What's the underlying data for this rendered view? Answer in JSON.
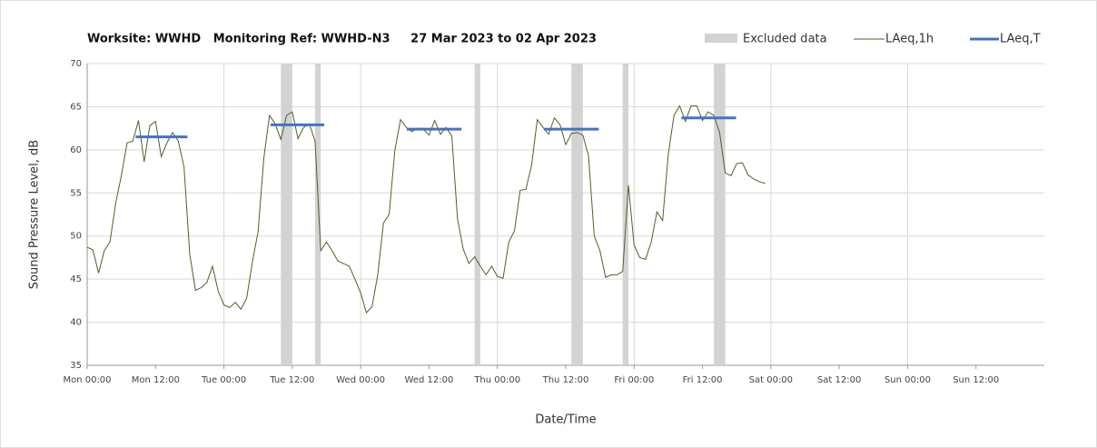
{
  "chart_data": {
    "type": "line",
    "title": "Worksite: WWHD   Monitoring Ref: WWHD-N3     27 Mar 2023 to 02 Apr 2023",
    "xlabel": "Date/Time",
    "ylabel": "Sound Pressure Level, dB",
    "xlim": [
      0,
      168
    ],
    "ylim": [
      35,
      70
    ],
    "yticks": [
      35,
      40,
      45,
      50,
      55,
      60,
      65,
      70
    ],
    "xticks": [
      {
        "value": 0,
        "label": "Mon 00:00"
      },
      {
        "value": 12,
        "label": "Mon 12:00"
      },
      {
        "value": 24,
        "label": "Tue 00:00"
      },
      {
        "value": 36,
        "label": "Tue 12:00"
      },
      {
        "value": 48,
        "label": "Wed 00:00"
      },
      {
        "value": 60,
        "label": "Wed 12:00"
      },
      {
        "value": 72,
        "label": "Thu 00:00"
      },
      {
        "value": 84,
        "label": "Thu 12:00"
      },
      {
        "value": 96,
        "label": "Fri 00:00"
      },
      {
        "value": 108,
        "label": "Fri 12:00"
      },
      {
        "value": 120,
        "label": "Sat 00:00"
      },
      {
        "value": 132,
        "label": "Sat 12:00"
      },
      {
        "value": 144,
        "label": "Sun 00:00"
      },
      {
        "value": 156,
        "label": "Sun 12:00"
      }
    ],
    "grid": true,
    "excluded": {
      "name": "Excluded data",
      "color": "#d3d3d3",
      "ranges": [
        [
          34,
          36
        ],
        [
          40,
          41
        ],
        [
          68,
          69
        ],
        [
          85,
          87
        ],
        [
          94,
          95
        ],
        [
          110,
          112
        ]
      ]
    },
    "series": [
      {
        "name": "LAeq,1h",
        "color": "#4f6228",
        "x": [
          0,
          1,
          2,
          3,
          4,
          5,
          6,
          7,
          8,
          9,
          10,
          11,
          12,
          13,
          14,
          15,
          16,
          17,
          18,
          19,
          20,
          21,
          22,
          23,
          24,
          25,
          26,
          27,
          28,
          29,
          30,
          31,
          32,
          33,
          34,
          35,
          36,
          37,
          38,
          39,
          40,
          41,
          42,
          43,
          44,
          45,
          46,
          47,
          48,
          49,
          50,
          51,
          52,
          53,
          54,
          55,
          56,
          57,
          58,
          59,
          60,
          61,
          62,
          63,
          64,
          65,
          66,
          67,
          68,
          69,
          70,
          71,
          72,
          73,
          74,
          75,
          76,
          77,
          78,
          79,
          80,
          81,
          82,
          83,
          84,
          85,
          86,
          87,
          88,
          89,
          90,
          91,
          92,
          93,
          94,
          95,
          96,
          97,
          98,
          99,
          100,
          101,
          102,
          103,
          104,
          105,
          106,
          107,
          108,
          109,
          110,
          111,
          112,
          113,
          114,
          115,
          116,
          117,
          118,
          119
        ],
        "values": [
          48.7,
          48.4,
          45.7,
          48.3,
          49.3,
          53.8,
          57,
          60.8,
          61,
          63.4,
          58.6,
          62.8,
          63.3,
          59.2,
          60.8,
          62,
          61,
          58,
          47.9,
          43.7,
          44,
          44.6,
          46.5,
          43.6,
          42,
          41.7,
          42.3,
          41.5,
          42.8,
          47,
          50.5,
          59,
          64,
          63,
          61.2,
          64,
          64.4,
          61.3,
          62.6,
          63,
          61,
          48.3,
          49.3,
          48.3,
          47.1,
          46.8,
          46.5,
          45,
          43.4,
          41.1,
          41.8,
          45.5,
          51.5,
          52.5,
          59.9,
          63.5,
          62.6,
          62.1,
          62.5,
          62.4,
          61.7,
          63.4,
          61.8,
          62.6,
          61.6,
          52,
          48.5,
          46.8,
          47.6,
          46.5,
          45.5,
          46.5,
          45.3,
          45.1,
          49.3,
          50.6,
          55.3,
          55.4,
          58.2,
          63.5,
          62.6,
          61.8,
          63.7,
          62.9,
          60.6,
          61.9,
          62,
          61.7,
          59.3,
          50,
          48.3,
          45.2,
          45.5,
          45.5,
          45.9,
          55.9,
          48.9,
          47.5,
          47.3,
          49.3,
          52.8,
          51.8,
          59.5,
          64,
          65.1,
          63.3,
          65.1,
          65.1,
          63.4,
          64.4,
          64,
          62,
          57.3,
          57,
          58.4,
          58.5,
          57.1,
          56.6,
          56.3,
          56.1
        ]
      }
    ],
    "laeq_t": {
      "name": "LAeq,T",
      "color": "#4472c4",
      "segments": [
        {
          "x": [
            8.5,
            17.6
          ],
          "value": 61.5
        },
        {
          "x": [
            32.2,
            41.6
          ],
          "value": 62.9
        },
        {
          "x": [
            56.1,
            65.7
          ],
          "value": 62.4
        },
        {
          "x": [
            80.2,
            89.8
          ],
          "value": 62.4
        },
        {
          "x": [
            104.3,
            113.9
          ],
          "value": 63.7
        }
      ]
    }
  }
}
